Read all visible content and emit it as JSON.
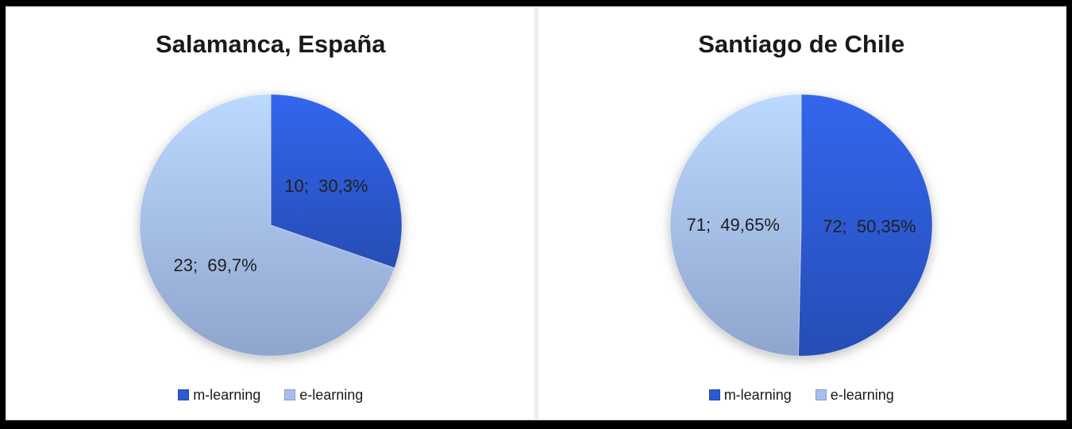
{
  "page": {
    "frame_color": "#000000",
    "panel_background": "#ffffff",
    "divider_color": "#ededed"
  },
  "colors": {
    "m_learning": "#2c5ad3",
    "e_learning": "#a6c0ee",
    "slice_label_text": "#1f1f1f",
    "title_text": "#1a1a1a"
  },
  "chart_data": [
    {
      "type": "pie",
      "title": "Salamanca, España",
      "start_angle": "top",
      "direction": "clockwise",
      "legend_position": "bottom",
      "grid": false,
      "series": [
        {
          "name": "m-learning",
          "value": 10,
          "percent": 30.3,
          "data_label": "10;  30,3%",
          "color": "#2c5ad3"
        },
        {
          "name": "e-learning",
          "value": 23,
          "percent": 69.7,
          "data_label": "23;  69,7%",
          "color": "#a6c0ee"
        }
      ]
    },
    {
      "type": "pie",
      "title": "Santiago de Chile",
      "start_angle": "top",
      "direction": "clockwise",
      "legend_position": "bottom",
      "grid": false,
      "series": [
        {
          "name": "m-learning",
          "value": 72,
          "percent": 50.35,
          "data_label": "72;  50,35%",
          "color": "#2c5ad3"
        },
        {
          "name": "e-learning",
          "value": 71,
          "percent": 49.65,
          "data_label": "71;  49,65%",
          "color": "#a6c0ee"
        }
      ]
    }
  ]
}
